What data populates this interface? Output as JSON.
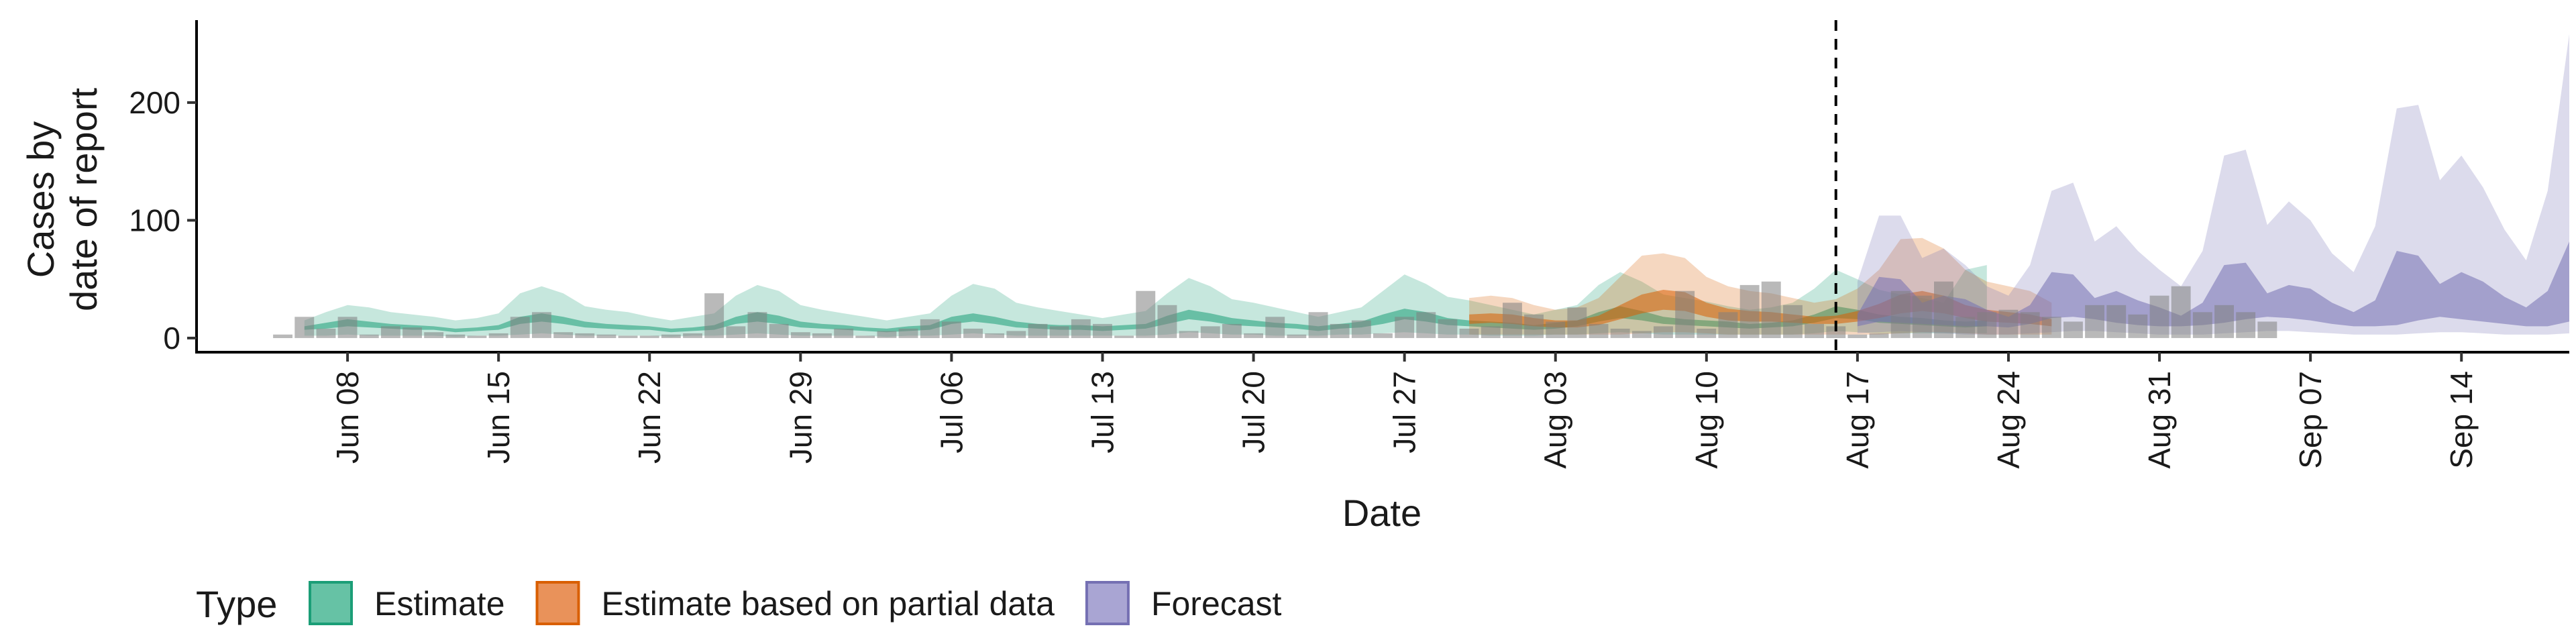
{
  "chart_data": {
    "type": "area",
    "xlabel": "Date",
    "ylabel": [
      "Cases by",
      "date of report"
    ],
    "ylim": [
      -12,
      270
    ],
    "yticks": [
      0,
      100,
      200
    ],
    "xlim": [
      "2020-06-01",
      "2020-09-19"
    ],
    "x_tick_labels": [
      {
        "date": "2020-06-08",
        "label": "Jun 08"
      },
      {
        "date": "2020-06-15",
        "label": "Jun 15"
      },
      {
        "date": "2020-06-22",
        "label": "Jun 22"
      },
      {
        "date": "2020-06-29",
        "label": "Jun 29"
      },
      {
        "date": "2020-07-06",
        "label": "Jul 06"
      },
      {
        "date": "2020-07-13",
        "label": "Jul 13"
      },
      {
        "date": "2020-07-20",
        "label": "Jul 20"
      },
      {
        "date": "2020-07-27",
        "label": "Jul 27"
      },
      {
        "date": "2020-08-03",
        "label": "Aug 03"
      },
      {
        "date": "2020-08-10",
        "label": "Aug 10"
      },
      {
        "date": "2020-08-17",
        "label": "Aug 17"
      },
      {
        "date": "2020-08-24",
        "label": "Aug 24"
      },
      {
        "date": "2020-08-31",
        "label": "Aug 31"
      },
      {
        "date": "2020-09-07",
        "label": "Sep 07"
      },
      {
        "date": "2020-09-14",
        "label": "Sep 14"
      }
    ],
    "grid": false,
    "vline_date": "2020-08-16",
    "legend": {
      "title": "Type",
      "position": "bottom",
      "entries": [
        {
          "label": "Estimate",
          "fill": "#66c2a5",
          "stroke": "#1b9e77"
        },
        {
          "label": "Estimate based on partial data",
          "fill": "#e9925a",
          "stroke": "#d95f02"
        },
        {
          "label": "Forecast",
          "fill": "#a9a5d3",
          "stroke": "#7570b3"
        }
      ]
    },
    "bar_color": "#7f7f7f",
    "series": [
      {
        "name": "Estimate",
        "outer_color": "#1b9e77",
        "inner_color": "#1b9e77",
        "start": "2020-06-06",
        "lower90": [
          2,
          2,
          3,
          2,
          2,
          2,
          2,
          1,
          2,
          2,
          3,
          4,
          3,
          2,
          2,
          2,
          2,
          1,
          2,
          2,
          3,
          4,
          3,
          2,
          2,
          2,
          2,
          1,
          2,
          2,
          3,
          4,
          3,
          2,
          2,
          2,
          2,
          2,
          2,
          2,
          3,
          5,
          4,
          3,
          3,
          2,
          2,
          2,
          3,
          3,
          4,
          5,
          4,
          3,
          3,
          2,
          2,
          2,
          3,
          3,
          4,
          5,
          4,
          3,
          3,
          3,
          3,
          3,
          3,
          3,
          4,
          6,
          5,
          4,
          4,
          4,
          4,
          4,
          4
        ],
        "lower50": [
          7,
          8,
          10,
          9,
          8,
          7,
          7,
          5,
          6,
          7,
          12,
          14,
          12,
          9,
          8,
          7,
          7,
          5,
          6,
          7,
          12,
          14,
          12,
          9,
          8,
          7,
          6,
          5,
          6,
          7,
          12,
          14,
          12,
          9,
          8,
          7,
          7,
          6,
          7,
          8,
          12,
          16,
          14,
          11,
          10,
          9,
          8,
          6,
          8,
          9,
          12,
          16,
          14,
          11,
          10,
          9,
          8,
          7,
          8,
          10,
          14,
          17,
          15,
          12,
          11,
          10,
          9,
          8,
          9,
          10,
          13,
          17,
          16,
          13,
          12,
          11,
          10,
          9,
          10
        ],
        "upper50": [
          10,
          13,
          16,
          14,
          12,
          11,
          10,
          8,
          9,
          11,
          18,
          21,
          18,
          14,
          12,
          11,
          10,
          8,
          9,
          11,
          18,
          22,
          19,
          14,
          12,
          11,
          9,
          8,
          10,
          11,
          18,
          21,
          18,
          14,
          12,
          11,
          11,
          10,
          11,
          12,
          19,
          24,
          21,
          17,
          15,
          13,
          12,
          10,
          12,
          14,
          20,
          25,
          22,
          17,
          15,
          14,
          13,
          11,
          13,
          15,
          22,
          27,
          23,
          18,
          16,
          15,
          14,
          12,
          13,
          15,
          20,
          27,
          24,
          20,
          18,
          17,
          15,
          14,
          15
        ],
        "upper90": [
          15,
          22,
          28,
          26,
          22,
          20,
          18,
          15,
          17,
          21,
          38,
          44,
          38,
          27,
          24,
          22,
          18,
          15,
          18,
          21,
          36,
          45,
          40,
          28,
          24,
          21,
          18,
          15,
          18,
          21,
          36,
          46,
          42,
          30,
          26,
          23,
          20,
          17,
          20,
          23,
          38,
          51,
          44,
          33,
          30,
          26,
          22,
          18,
          22,
          26,
          40,
          54,
          46,
          35,
          32,
          28,
          24,
          20,
          24,
          28,
          45,
          56,
          48,
          37,
          34,
          31,
          27,
          24,
          26,
          30,
          42,
          58,
          50,
          41,
          37,
          34,
          30,
          58,
          62
        ]
      },
      {
        "name": "Estimate based on partial data",
        "outer_color": "#d95f02",
        "inner_color": "#d95f02",
        "start": "2020-07-30",
        "lower90": [
          3,
          3,
          3,
          3,
          3,
          3,
          3,
          3,
          4,
          5,
          5,
          4,
          3,
          3,
          3,
          3,
          3,
          3,
          3,
          3,
          4,
          5,
          5,
          4,
          3,
          3,
          3,
          3
        ],
        "lower50": [
          12,
          13,
          12,
          10,
          9,
          9,
          11,
          16,
          21,
          24,
          23,
          18,
          15,
          14,
          14,
          13,
          12,
          12,
          14,
          17,
          21,
          23,
          21,
          17,
          14,
          13,
          12,
          10
        ],
        "upper50": [
          20,
          21,
          20,
          17,
          15,
          15,
          19,
          28,
          37,
          41,
          39,
          30,
          25,
          23,
          22,
          20,
          18,
          19,
          23,
          29,
          37,
          40,
          36,
          28,
          24,
          22,
          20,
          16
        ],
        "upper90": [
          34,
          36,
          34,
          28,
          24,
          26,
          34,
          52,
          70,
          72,
          68,
          52,
          44,
          40,
          38,
          34,
          30,
          33,
          42,
          58,
          84,
          85,
          76,
          58,
          48,
          44,
          40,
          30
        ]
      },
      {
        "name": "Forecast",
        "outer_color": "#7570b3",
        "inner_color": "#7570b3",
        "start": "2020-08-17",
        "lower90": [
          4,
          5,
          6,
          5,
          4,
          3,
          3,
          3,
          4,
          5,
          6,
          6,
          5,
          4,
          3,
          3,
          3,
          4,
          5,
          6,
          6,
          5,
          4,
          3,
          3,
          3,
          4,
          5,
          5,
          4,
          3,
          3,
          3,
          4
        ],
        "lower50": [
          10,
          14,
          13,
          12,
          11,
          10,
          10,
          9,
          12,
          17,
          18,
          16,
          13,
          11,
          10,
          10,
          11,
          13,
          16,
          18,
          17,
          15,
          12,
          10,
          10,
          11,
          15,
          18,
          16,
          14,
          12,
          10,
          10,
          14
        ],
        "upper50": [
          20,
          52,
          50,
          30,
          36,
          33,
          24,
          18,
          28,
          56,
          54,
          34,
          40,
          32,
          26,
          19,
          30,
          62,
          64,
          38,
          45,
          42,
          30,
          22,
          32,
          74,
          70,
          46,
          56,
          48,
          35,
          26,
          40,
          82
        ],
        "upper90": [
          48,
          104,
          104,
          68,
          76,
          62,
          44,
          36,
          62,
          125,
          132,
          82,
          95,
          74,
          58,
          44,
          74,
          155,
          160,
          96,
          116,
          100,
          72,
          56,
          95,
          195,
          198,
          134,
          155,
          128,
          92,
          66,
          125,
          258
        ]
      }
    ],
    "bars": {
      "start": "2020-06-05",
      "values": [
        3,
        18,
        8,
        18,
        3,
        10,
        9,
        5,
        3,
        2,
        4,
        18,
        22,
        5,
        4,
        3,
        2,
        2,
        3,
        4,
        38,
        10,
        22,
        12,
        5,
        4,
        8,
        2,
        6,
        8,
        16,
        14,
        8,
        4,
        6,
        12,
        10,
        16,
        12,
        2,
        40,
        28,
        6,
        10,
        12,
        4,
        18,
        3,
        22,
        12,
        15,
        4,
        18,
        22,
        16,
        8,
        10,
        30,
        20,
        14,
        26,
        12,
        8,
        6,
        10,
        40,
        8,
        22,
        45,
        48,
        28,
        12,
        10,
        3,
        4,
        40,
        36,
        48,
        18,
        22,
        24,
        22,
        18,
        14,
        28,
        28,
        20,
        36,
        44,
        22,
        28,
        22,
        14
      ]
    }
  }
}
